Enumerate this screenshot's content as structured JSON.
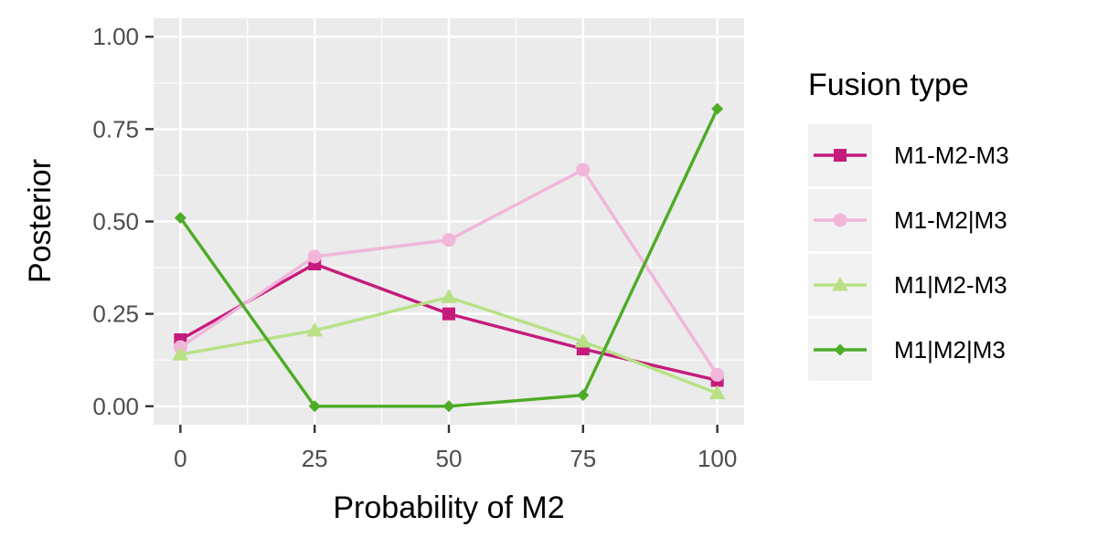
{
  "chart_data": {
    "type": "line",
    "xlabel": "Probability of M2",
    "ylabel": "Posterior",
    "x": [
      0,
      25,
      50,
      75,
      100
    ],
    "xlim": [
      -5,
      105
    ],
    "ylim": [
      -0.05,
      1.05
    ],
    "x_ticks": [
      "0",
      "25",
      "50",
      "75",
      "100"
    ],
    "y_ticks": [
      "0.00",
      "0.25",
      "0.50",
      "0.75",
      "1.00"
    ],
    "grid": true,
    "legend": {
      "title": "Fusion type",
      "placement": "right"
    },
    "series": [
      {
        "name": "M1-M2-M3",
        "color": "#c51b7d",
        "marker": "square",
        "values": [
          0.18,
          0.385,
          0.25,
          0.155,
          0.07
        ]
      },
      {
        "name": "M1-M2|M3",
        "color": "#f1b6da",
        "marker": "circle",
        "values": [
          0.16,
          0.405,
          0.45,
          0.64,
          0.085
        ]
      },
      {
        "name": "M1|M2-M3",
        "color": "#b8e186",
        "marker": "triangle",
        "values": [
          0.14,
          0.205,
          0.295,
          0.175,
          0.035
        ]
      },
      {
        "name": "M1|M2|M3",
        "color": "#4dac26",
        "marker": "diamond",
        "values": [
          0.51,
          0.0,
          0.0,
          0.03,
          0.805
        ]
      }
    ]
  }
}
